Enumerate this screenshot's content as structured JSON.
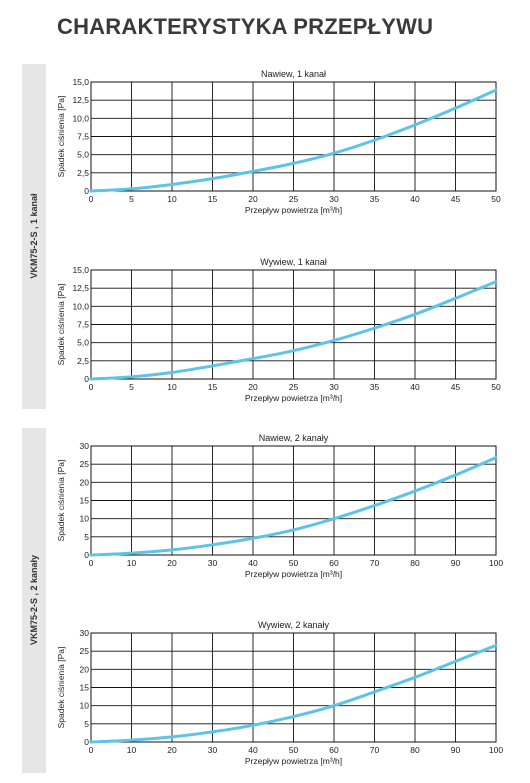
{
  "page": {
    "title": "CHARAKTERYSTYKA PRZEPŁYWU"
  },
  "groups": [
    {
      "label": "VKM75-2-S , 1 kanał"
    },
    {
      "label": "VKM75-2-S , 2 kanały"
    }
  ],
  "colors": {
    "curve": "#5bc4e8",
    "grid": "#111111",
    "band": "#e6e6e6",
    "title": "#3a3a3a"
  },
  "chart_data": [
    {
      "type": "line",
      "title": "Nawiew, 1 kanał",
      "xlabel": "Przepływ powietrza [m³/h]",
      "ylabel": "Spadek ciśnienia [Pa]",
      "xlim": [
        0,
        50
      ],
      "ylim": [
        0,
        15
      ],
      "xticks": [
        0,
        5,
        10,
        15,
        20,
        25,
        30,
        35,
        40,
        45,
        50
      ],
      "yticks": [
        0,
        2.5,
        5,
        7.5,
        10,
        12.5,
        15
      ],
      "ytick_labels": [
        "0",
        "2,5",
        "5,0",
        "7,5",
        "10,0",
        "12,5",
        "15,0"
      ],
      "grid": true,
      "series": [
        {
          "x": [
            0,
            5,
            10,
            15,
            20,
            25,
            30,
            35,
            40,
            45,
            50
          ],
          "y": [
            0,
            0.3,
            0.9,
            1.7,
            2.7,
            3.8,
            5.2,
            7.0,
            9.1,
            11.4,
            13.9
          ]
        }
      ]
    },
    {
      "type": "line",
      "title": "Wywiew, 1 kanał",
      "xlabel": "Przepływ powietrza [m³/h]",
      "ylabel": "Spadek ciśnienia [Pa]",
      "xlim": [
        0,
        50
      ],
      "ylim": [
        0,
        15
      ],
      "xticks": [
        0,
        5,
        10,
        15,
        20,
        25,
        30,
        35,
        40,
        45,
        50
      ],
      "yticks": [
        0,
        2.5,
        5,
        7.5,
        10,
        12.5,
        15
      ],
      "ytick_labels": [
        "0",
        "2,5",
        "5,0",
        "7,5",
        "10,0",
        "12,5",
        "15,0"
      ],
      "grid": true,
      "series": [
        {
          "x": [
            0,
            5,
            10,
            15,
            20,
            25,
            30,
            35,
            40,
            45,
            50
          ],
          "y": [
            0,
            0.3,
            0.9,
            1.8,
            2.8,
            3.9,
            5.3,
            7.0,
            8.9,
            11.1,
            13.4
          ]
        }
      ]
    },
    {
      "type": "line",
      "title": "Nawiew, 2 kanały",
      "xlabel": "Przepływ powietrza [m³/h]",
      "ylabel": "Spadek ciśnienia [Pa]",
      "xlim": [
        0,
        100
      ],
      "ylim": [
        0,
        30
      ],
      "xticks": [
        0,
        10,
        20,
        30,
        40,
        50,
        60,
        70,
        80,
        90,
        100
      ],
      "yticks": [
        0,
        5,
        10,
        15,
        20,
        25,
        30
      ],
      "ytick_labels": [
        "0",
        "5",
        "10",
        "15",
        "20",
        "25",
        "30"
      ],
      "grid": true,
      "series": [
        {
          "x": [
            0,
            10,
            20,
            30,
            40,
            50,
            60,
            70,
            80,
            90,
            100
          ],
          "y": [
            0,
            0.5,
            1.4,
            2.8,
            4.6,
            6.9,
            10.0,
            13.6,
            17.6,
            22.0,
            26.8
          ]
        }
      ]
    },
    {
      "type": "line",
      "title": "Wywiew, 2 kanały",
      "xlabel": "Przepływ powietrza [m³/h]",
      "ylabel": "Spadek ciśnienia [Pa]",
      "xlim": [
        0,
        100
      ],
      "ylim": [
        0,
        30
      ],
      "xticks": [
        0,
        10,
        20,
        30,
        40,
        50,
        60,
        70,
        80,
        90,
        100
      ],
      "yticks": [
        0,
        5,
        10,
        15,
        20,
        25,
        30
      ],
      "ytick_labels": [
        "0",
        "5",
        "10",
        "15",
        "20",
        "25",
        "30"
      ],
      "grid": true,
      "series": [
        {
          "x": [
            0,
            10,
            20,
            30,
            40,
            50,
            60,
            70,
            80,
            90,
            100
          ],
          "y": [
            0,
            0.5,
            1.4,
            2.8,
            4.6,
            7.0,
            10.0,
            13.8,
            17.8,
            22.2,
            26.6
          ]
        }
      ]
    }
  ]
}
